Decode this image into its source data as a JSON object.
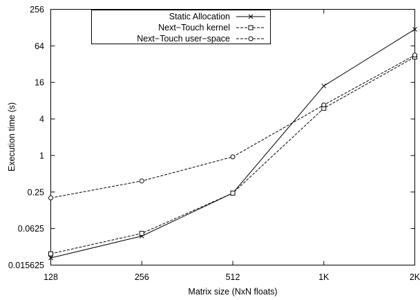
{
  "chart_data": {
    "type": "line",
    "title": "",
    "xlabel": "Matrix size (NxN floats)",
    "ylabel": "Execution time (s)",
    "x_scale": "log2",
    "y_scale": "log2",
    "x": [
      128,
      256,
      512,
      1024,
      2048
    ],
    "x_tick_labels": [
      "128",
      "256",
      "512",
      "1K",
      "2K"
    ],
    "xlim": [
      128,
      2048
    ],
    "y_ticks": [
      0.015625,
      0.0625,
      0.25,
      1,
      4,
      16,
      64,
      256
    ],
    "y_tick_labels": [
      "0.015625",
      "0.0625",
      "0.25",
      "1",
      "4",
      "16",
      "64",
      "256"
    ],
    "ylim": [
      0.015625,
      256
    ],
    "grid": false,
    "legend_position": "top-left",
    "series": [
      {
        "name": "Static Allocation",
        "values": [
          0.0205,
          0.047,
          0.24,
          14,
          120
        ],
        "line_style": "solid",
        "marker": "cross",
        "color": "#000000"
      },
      {
        "name": "Next−Touch kernel",
        "values": [
          0.024,
          0.052,
          0.24,
          6,
          42
        ],
        "line_style": "dashed",
        "marker": "square",
        "color": "#000000"
      },
      {
        "name": "Next−Touch user−space",
        "values": [
          0.2,
          0.38,
          0.95,
          6.8,
          45
        ],
        "line_style": "dashed",
        "marker": "circle",
        "color": "#000000"
      }
    ]
  }
}
